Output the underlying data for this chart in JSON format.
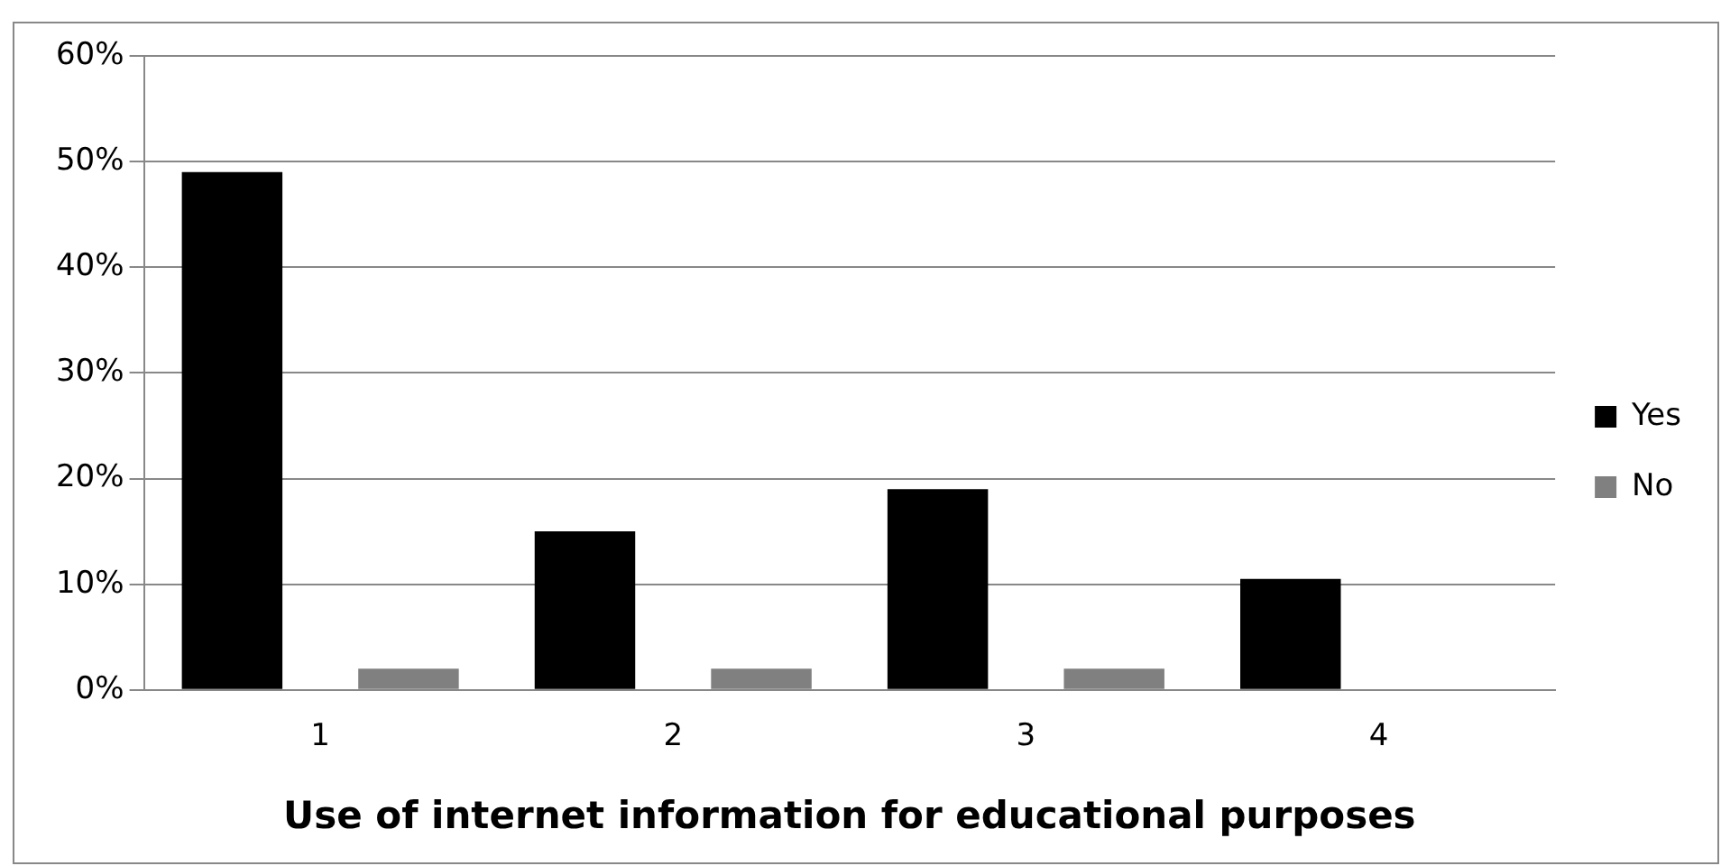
{
  "chart_data": {
    "type": "bar",
    "xlabel": "Use of internet information for educational purposes",
    "categories": [
      "1",
      "2",
      "3",
      "4"
    ],
    "series": [
      {
        "name": "Yes",
        "color": "#000000",
        "values": [
          49,
          15,
          19,
          10.5
        ]
      },
      {
        "name": "No",
        "color": "#808080",
        "values": [
          2,
          2,
          2,
          0
        ]
      }
    ],
    "ylim": [
      0,
      60
    ],
    "yticks": [
      {
        "value": 0,
        "label": "0%"
      },
      {
        "value": 10,
        "label": "10%"
      },
      {
        "value": 20,
        "label": "20%"
      },
      {
        "value": 30,
        "label": "30%"
      },
      {
        "value": 40,
        "label": "40%"
      },
      {
        "value": 50,
        "label": "50%"
      },
      {
        "value": 60,
        "label": "60%"
      }
    ],
    "grid": "y",
    "legend": "right"
  }
}
